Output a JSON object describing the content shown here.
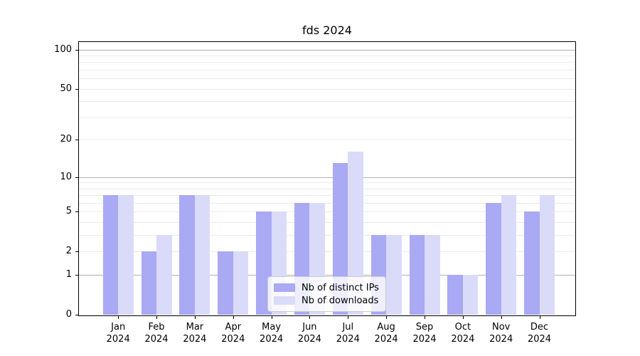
{
  "chart_data": {
    "type": "bar",
    "title": "fds 2024",
    "categories": [
      {
        "month": "Jan",
        "year": "2024"
      },
      {
        "month": "Feb",
        "year": "2024"
      },
      {
        "month": "Mar",
        "year": "2024"
      },
      {
        "month": "Apr",
        "year": "2024"
      },
      {
        "month": "May",
        "year": "2024"
      },
      {
        "month": "Jun",
        "year": "2024"
      },
      {
        "month": "Jul",
        "year": "2024"
      },
      {
        "month": "Aug",
        "year": "2024"
      },
      {
        "month": "Sep",
        "year": "2024"
      },
      {
        "month": "Oct",
        "year": "2024"
      },
      {
        "month": "Nov",
        "year": "2024"
      },
      {
        "month": "Dec",
        "year": "2024"
      }
    ],
    "series": [
      {
        "name": "Nb of distinct IPs",
        "color": "#a9a9f4",
        "values": [
          7,
          2,
          7,
          2,
          5,
          6,
          13,
          3,
          3,
          1,
          6,
          5
        ]
      },
      {
        "name": "Nb of downloads",
        "color": "#dadaf9",
        "values": [
          7,
          3,
          7,
          2,
          5,
          6,
          16,
          3,
          3,
          1,
          7,
          7
        ]
      }
    ],
    "y_axis": {
      "scale": "log1p",
      "tick_values": [
        0,
        1,
        2,
        5,
        10,
        20,
        50,
        100
      ],
      "tick_labels": [
        "0",
        "1",
        "2",
        "5",
        "10",
        "20",
        "50",
        "100"
      ],
      "major_gridlines": [
        1,
        10,
        100
      ],
      "minor_gridlines": [
        2,
        3,
        4,
        5,
        6,
        7,
        8,
        9,
        20,
        30,
        40,
        50,
        60,
        70,
        80,
        90
      ],
      "ylim": [
        0,
        115
      ],
      "grid": true
    },
    "legend": {
      "position": "lower center",
      "entries": [
        "Nb of distinct IPs",
        "Nb of downloads"
      ]
    }
  }
}
